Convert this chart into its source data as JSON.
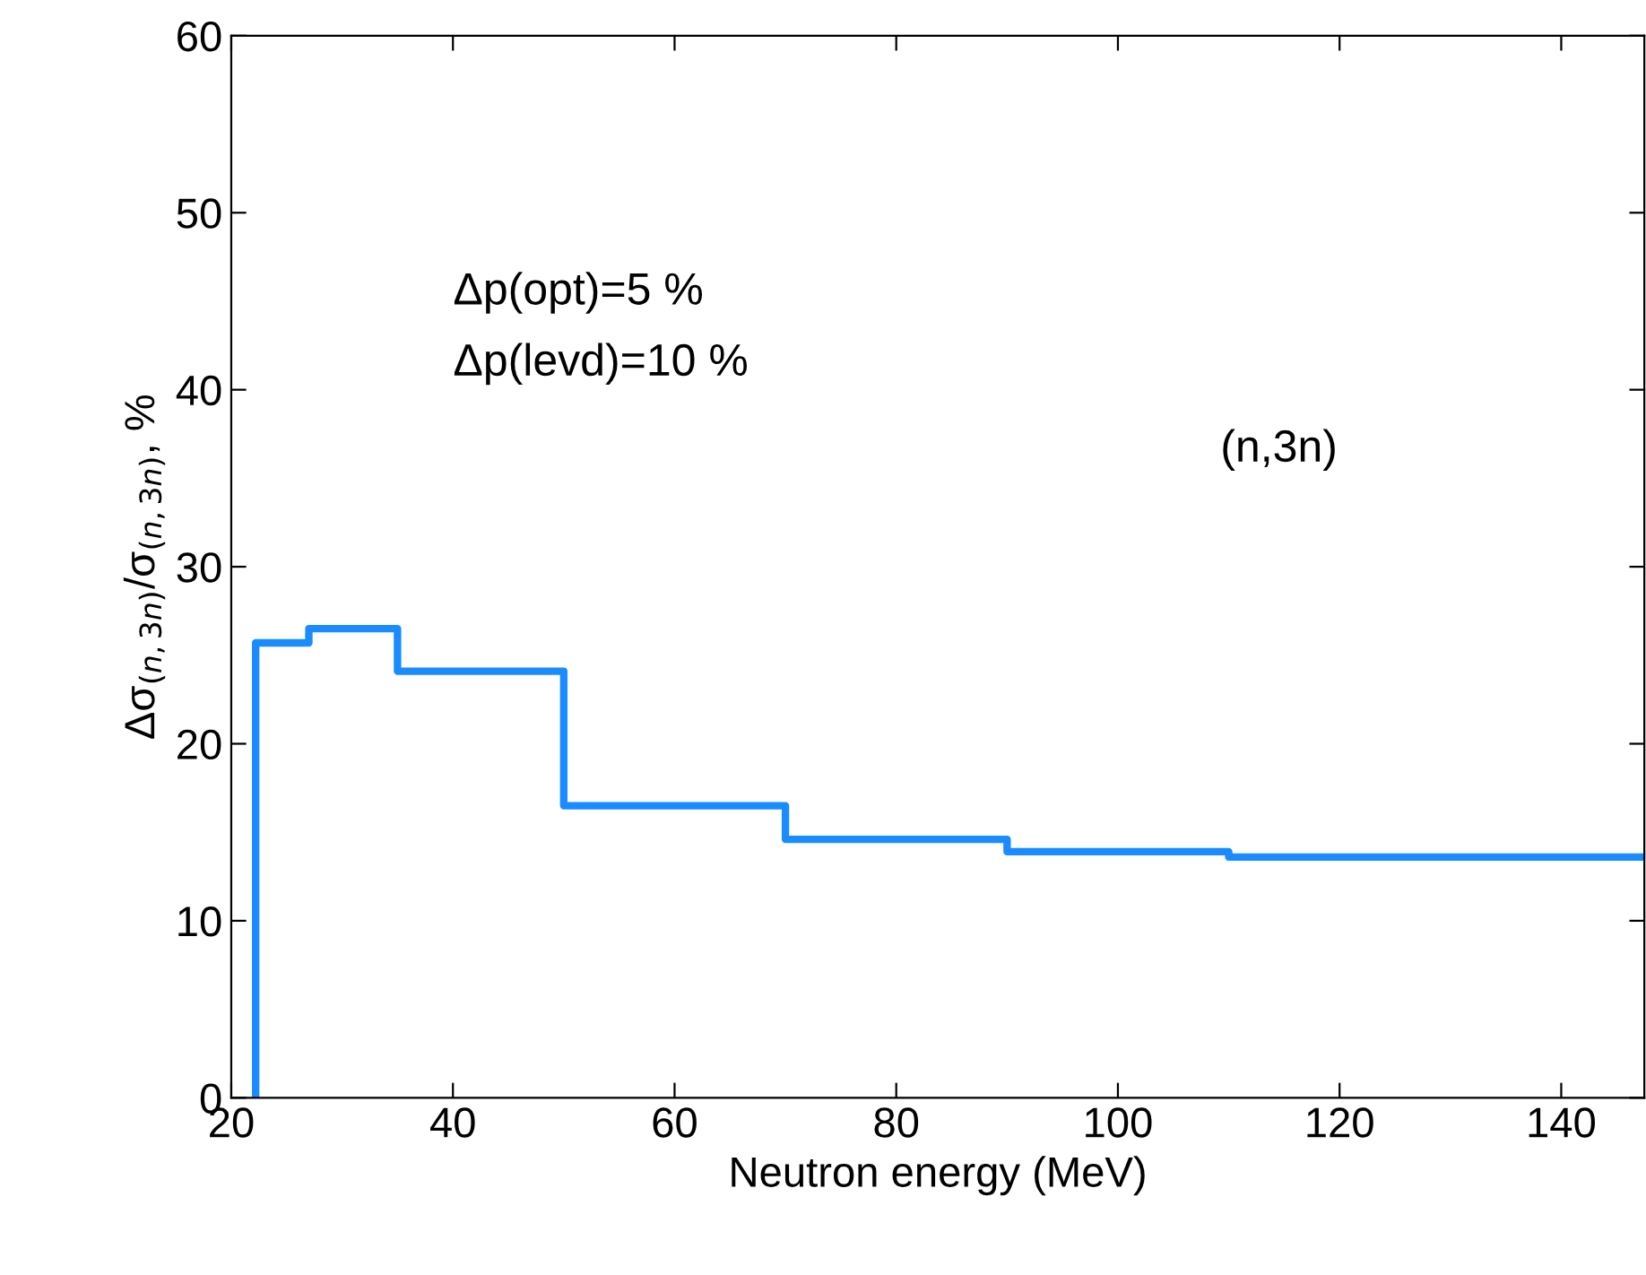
{
  "chart_data": {
    "type": "step",
    "xlabel": "Neutron energy (MeV)",
    "ylabel": "Δσ$_{(n,3n)}$/σ$_{(n,3n)}$, %",
    "x": [
      22.2,
      22.2,
      27,
      35,
      50,
      70,
      90,
      110,
      147.5
    ],
    "series": [
      {
        "color": "#1a8cff",
        "values": [
          0,
          25.7,
          26.5,
          24.1,
          16.5,
          14.6,
          13.9,
          13.6,
          13.6
        ]
      }
    ],
    "xlim": [
      20,
      147.5
    ],
    "xticks": [
      20,
      40,
      60,
      80,
      100,
      120,
      140
    ],
    "ylim": [
      0,
      60
    ],
    "yticks": [
      0,
      10,
      20,
      30,
      40,
      50,
      60
    ],
    "grid": false,
    "legend": false,
    "marker": "none",
    "line_style": "solid",
    "annotations": [
      "Δp(opt)=5 %",
      "Δp(levd)=10 %",
      "(n,3n)"
    ]
  }
}
